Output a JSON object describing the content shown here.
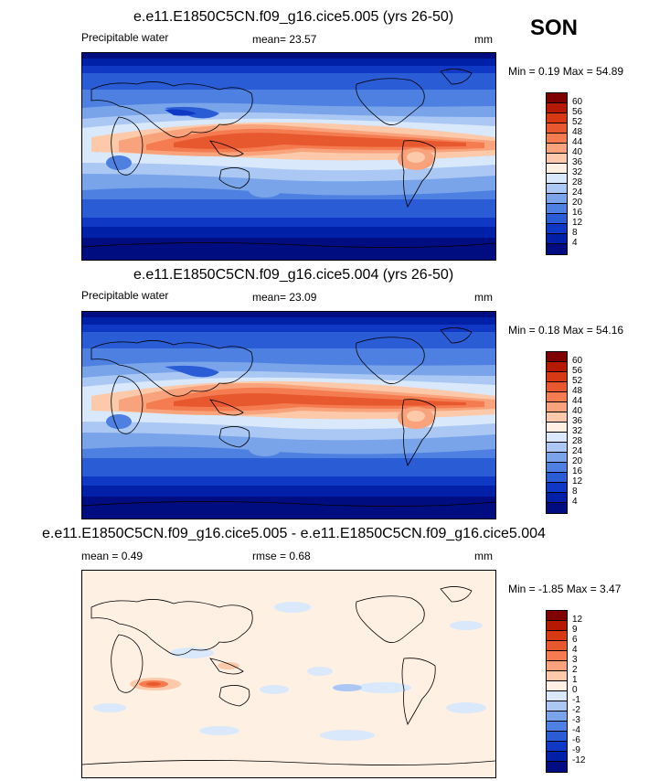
{
  "season": "SON",
  "panels": [
    {
      "title": "e.e11.E1850C5CN.f09_g16.cice5.005 (yrs 26-50)",
      "left_label": "Precipitable water",
      "center_label": "mean=  23.57",
      "units": "mm",
      "stats": "Min =   0.19 Max =  54.89",
      "colorbar": {
        "labels": [
          "60",
          "56",
          "52",
          "48",
          "44",
          "40",
          "36",
          "32",
          "28",
          "24",
          "20",
          "16",
          "12",
          "8",
          "4"
        ],
        "colors": [
          "#7f0000",
          "#b51a00",
          "#d73a12",
          "#e8582e",
          "#f47c50",
          "#f9a37c",
          "#fccaaa",
          "#fff0e4",
          "#d9e8fb",
          "#aac8f3",
          "#7aa4ea",
          "#4d80e0",
          "#2a5cd6",
          "#0f39c4",
          "#0020a8",
          "#000d80"
        ]
      }
    },
    {
      "title": "e.e11.E1850C5CN.f09_g16.cice5.004 (yrs 26-50)",
      "left_label": "Precipitable water",
      "center_label": "mean=  23.09",
      "units": "mm",
      "stats": "Min =   0.18 Max =  54.16",
      "colorbar": {
        "labels": [
          "60",
          "56",
          "52",
          "48",
          "44",
          "40",
          "36",
          "32",
          "28",
          "24",
          "20",
          "16",
          "12",
          "8",
          "4"
        ],
        "colors": [
          "#7f0000",
          "#b51a00",
          "#d73a12",
          "#e8582e",
          "#f47c50",
          "#f9a37c",
          "#fccaaa",
          "#fff0e4",
          "#d9e8fb",
          "#aac8f3",
          "#7aa4ea",
          "#4d80e0",
          "#2a5cd6",
          "#0f39c4",
          "#0020a8",
          "#000d80"
        ]
      }
    },
    {
      "title": "e.e11.E1850C5CN.f09_g16.cice5.005 - e.e11.E1850C5CN.f09_g16.cice5.004",
      "left_label": "mean =   0.49",
      "center_label": "rmse =   0.68",
      "units": "mm",
      "stats": "Min =  -1.85 Max =   3.47",
      "colorbar": {
        "labels": [
          "12",
          "9",
          "6",
          "4",
          "3",
          "2",
          "1",
          "0",
          "-1",
          "-2",
          "-3",
          "-4",
          "-6",
          "-9",
          "-12"
        ],
        "colors": [
          "#7f0000",
          "#b51a00",
          "#d73a12",
          "#e8582e",
          "#f47c50",
          "#f9a37c",
          "#fccaaa",
          "#fff0e4",
          "#d9e8fb",
          "#aac8f3",
          "#7aa4ea",
          "#4d80e0",
          "#2a5cd6",
          "#0f39c4",
          "#0020a8",
          "#000d80"
        ]
      }
    }
  ]
}
